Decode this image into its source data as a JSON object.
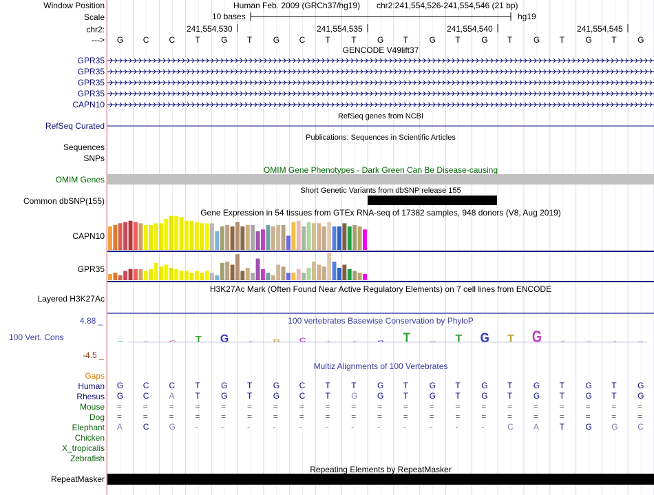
{
  "header": {
    "window_position_label": "Window Position",
    "assembly_text": "Human Feb. 2009 (GRCh37/hg19)",
    "position_text": "chr2:241,554,526-241,554,546 (21 bp)",
    "scale_label": "Scale",
    "scale_text": "10 bases",
    "assembly_short": "hg19",
    "chrom_label": "chr2:",
    "strand_arrow": "--->",
    "coord_ticks": [
      "241,554,530",
      "241,554,535",
      "241,554,540",
      "241,554,545"
    ]
  },
  "bases": [
    "G",
    "C",
    "C",
    "T",
    "G",
    "T",
    "G",
    "C",
    "T",
    "T",
    "G",
    "T",
    "G",
    "T",
    "G",
    "T",
    "G",
    "T",
    "G",
    "T",
    "G"
  ],
  "tracks": {
    "gencode": {
      "title": "GENCODE V49lift37",
      "genes": [
        "GPR35",
        "GPR35",
        "GPR35",
        "GPR35",
        "CAPN10"
      ]
    },
    "refseq": {
      "title": "RefSeq genes from NCBI",
      "label": "RefSeq Curated"
    },
    "publications": {
      "title": "Publications: Sequences in Scientific Articles",
      "labels": [
        "Sequences",
        "SNPs"
      ]
    },
    "omim": {
      "title": "OMIM Gene Phenotypes - Dark Green Can Be Disease-causing",
      "label": "OMIM Genes"
    },
    "dbsnp": {
      "title": "Short Genetic Variants from dbSNP release 155",
      "label": "Common dbSNP(155)"
    },
    "gtex": {
      "title": "Gene Expression in 54 tissues from GTEx RNA-seq of 17382 samples, 948 donors (V8, Aug 2019)",
      "genes": [
        "CAPN10",
        "GPR35"
      ],
      "tissue_colors": [
        "#f0a040",
        "#e07a30",
        "#d86050",
        "#c84a5a",
        "#b83838",
        "#e86060",
        "#d0a060",
        "#f0f000",
        "#e8e800",
        "#f0f010",
        "#eaea00",
        "#f4f400",
        "#e6e600",
        "#f2f200",
        "#ecec00",
        "#eeee00",
        "#e8e800",
        "#f0f000",
        "#eaea00",
        "#f4f400",
        "#bbbbbb",
        "#7fb0d8",
        "#a0a070",
        "#c0a080",
        "#906848",
        "#b09070",
        "#8a6a4a",
        "#c8b080",
        "#a8a8a8",
        "#a050b0",
        "#c040c0",
        "#70a0a0",
        "#c8b090",
        "#d0b898",
        "#b8a080",
        "#6868e0",
        "#f0c040",
        "#e8b8b8",
        "#a8b8a0",
        "#a8d8a0",
        "#d0c090",
        "#d0b090",
        "#c8a888",
        "#e0c8b0",
        "#5080e0",
        "#3060c0",
        "#806040",
        "#20a040",
        "#a0a070",
        "#c0a070",
        "#f000f0"
      ],
      "capn10_values": [
        0.38,
        0.4,
        0.43,
        0.45,
        0.47,
        0.45,
        0.43,
        0.4,
        0.4,
        0.43,
        0.43,
        0.5,
        0.55,
        0.55,
        0.53,
        0.47,
        0.47,
        0.45,
        0.43,
        0.43,
        0.43,
        0.3,
        0.38,
        0.4,
        0.38,
        0.45,
        0.38,
        0.4,
        0.4,
        0.3,
        0.33,
        0.4,
        0.38,
        0.4,
        0.4,
        0.23,
        0.45,
        0.47,
        0.38,
        0.45,
        0.43,
        0.43,
        0.38,
        0.45,
        0.38,
        0.38,
        0.43,
        0.38,
        0.4,
        0.38,
        0.33
      ],
      "gpr35_values": [
        0.1,
        0.12,
        0.08,
        0.15,
        0.18,
        0.18,
        0.18,
        0.15,
        0.18,
        0.28,
        0.22,
        0.25,
        0.2,
        0.18,
        0.15,
        0.15,
        0.12,
        0.15,
        0.12,
        0.15,
        0.12,
        0.08,
        0.28,
        0.3,
        0.25,
        0.42,
        0.15,
        0.2,
        0.12,
        0.35,
        0.18,
        0.12,
        0.08,
        0.25,
        0.22,
        0.12,
        0.12,
        0.18,
        0.12,
        0.2,
        0.3,
        0.25,
        0.22,
        0.45,
        0.3,
        0.2,
        0.25,
        0.18,
        0.15,
        0.12,
        0.1
      ]
    },
    "h3k27ac": {
      "title": "H3K27Ac Mark (Often Found Near Active Regulatory Elements) on 7 cell lines from ENCODE",
      "label": "Layered H3K27Ac"
    },
    "phylop": {
      "title": "100 vertebrates Basewise Conservation by PhyloP",
      "label": "100 Vert. Cons",
      "max_label": "4.88 _",
      "min_label": "-4.5 _"
    },
    "multiz": {
      "title": "Multiz Alignments of 100 Vertebrates",
      "gaps_label": "Gaps",
      "species": [
        "Human",
        "Rhesus",
        "Mouse",
        "Dog",
        "Elephant",
        "Chicken",
        "X_tropicalis",
        "Zebrafish"
      ],
      "rows": {
        "Human": [
          "G",
          "C",
          "C",
          "T",
          "G",
          "T",
          "G",
          "C",
          "T",
          "T",
          "G",
          "T",
          "G",
          "T",
          "G",
          "T",
          "G",
          "T",
          "G",
          "T",
          "G"
        ],
        "Rhesus": [
          "G",
          "C",
          "A",
          "T",
          "G",
          "T",
          "G",
          "C",
          "T",
          "G",
          "G",
          "T",
          "G",
          "T",
          "G",
          "T",
          "G",
          "T",
          "G",
          "T",
          "G"
        ],
        "Mouse": [
          "=",
          "=",
          "=",
          "=",
          "=",
          "=",
          "=",
          "=",
          "=",
          "=",
          "=",
          "=",
          "=",
          "=",
          "=",
          "=",
          "=",
          "=",
          "=",
          "=",
          "="
        ],
        "Dog": [
          "=",
          "=",
          "=",
          "=",
          "=",
          "=",
          "=",
          "=",
          "=",
          "=",
          "=",
          "=",
          "=",
          "=",
          "=",
          "=",
          "=",
          "=",
          "=",
          "=",
          "="
        ],
        "Elephant": [
          "A",
          "C",
          "G",
          "-",
          "-",
          "-",
          "-",
          "-",
          "-",
          "-",
          "-",
          "-",
          "-",
          "-",
          "-",
          "C",
          "A",
          "T",
          "G",
          "G",
          "C"
        ]
      }
    },
    "repeatmasker": {
      "title": "Repeating Elements by RepeatMasker",
      "label": "RepeatMasker"
    }
  },
  "colors": {
    "label_blue": "#0c0c78",
    "omim_green": "#006400",
    "gaps_orange": "#d08000",
    "phylop_pos": "#3a3aa0",
    "phylop_neg": "#8a3000",
    "dbsnp_bar": "#000000",
    "omim_bar": "#c0c0c0"
  }
}
